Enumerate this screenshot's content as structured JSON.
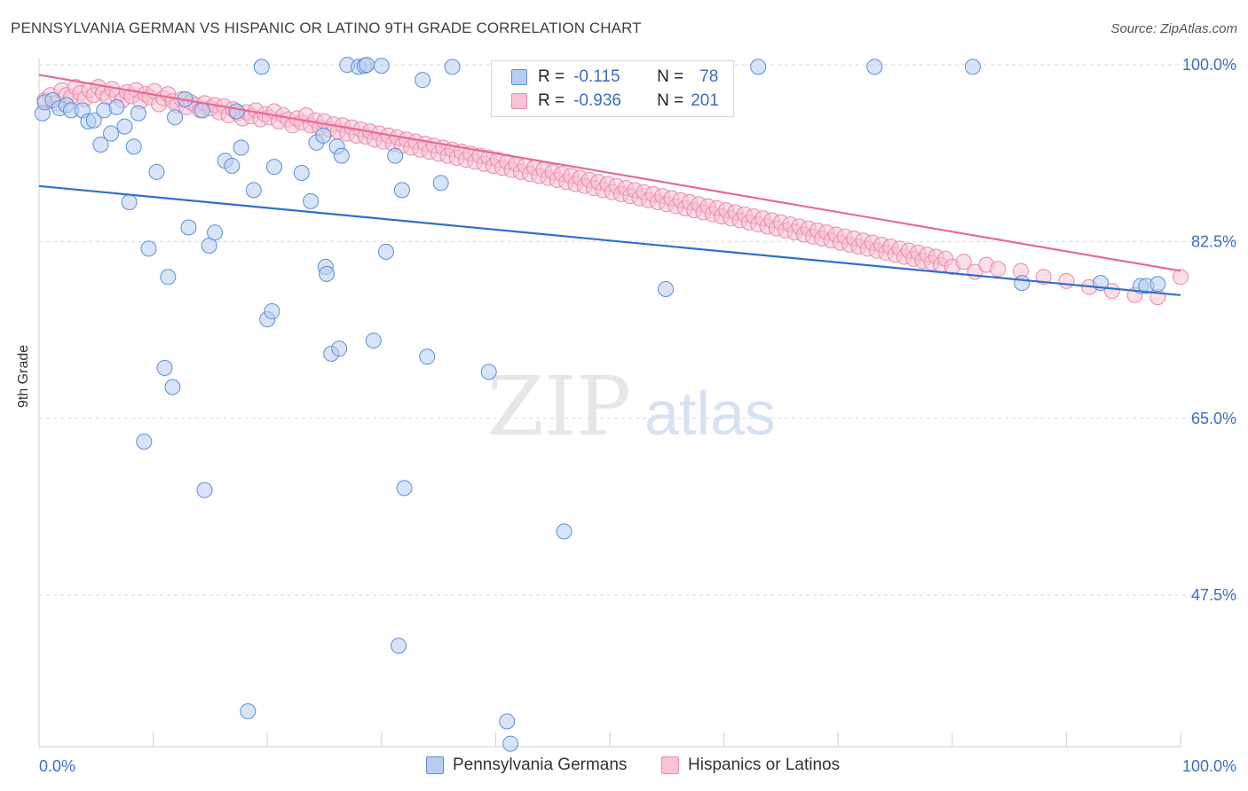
{
  "title": "PENNSYLVANIA GERMAN VS HISPANIC OR LATINO 9TH GRADE CORRELATION CHART",
  "source": "Source: ZipAtlas.com",
  "watermark": {
    "zip": "ZIP",
    "atlas": "atlas"
  },
  "legend_stats": {
    "r_label": "R =",
    "n_label": "N =",
    "rows": [
      {
        "r": "-0.115",
        "n": "78"
      },
      {
        "r": "-0.936",
        "n": "201"
      }
    ]
  },
  "colors": {
    "blue_fill": "#b7cdf0",
    "blue_stroke": "#5b8fd6",
    "blue_line": "#2f6fcb",
    "pink_fill": "#f8c3d4",
    "pink_stroke": "#e88aa8",
    "pink_line": "#e86a93",
    "tick_text": "#3a6ec4",
    "grid": "#d8d8d8"
  },
  "chart_data": {
    "type": "scatter",
    "title": "PENNSYLVANIA GERMAN VS HISPANIC OR LATINO 9TH GRADE CORRELATION CHART",
    "xlabel": "",
    "ylabel": "9th Grade",
    "xlim": [
      0,
      100
    ],
    "ylim": [
      32.5,
      101.5
    ],
    "x_tick_labels": [
      "0.0%",
      "100.0%"
    ],
    "y_ticks": [
      100,
      82.5,
      65,
      47.5
    ],
    "y_tick_labels": [
      "100.0%",
      "82.5%",
      "65.0%",
      "47.5%"
    ],
    "grid": "horizontal dashed",
    "legend_placement": "bottom-center",
    "series": [
      {
        "name": "Pennsylvania Germans",
        "r": -0.115,
        "n": 78,
        "trend": [
          [
            0,
            88.0
          ],
          [
            100,
            77.2
          ]
        ],
        "points": [
          [
            0.3,
            95.2
          ],
          [
            0.5,
            96.3
          ],
          [
            1.2,
            96.5
          ],
          [
            1.8,
            95.7
          ],
          [
            2.4,
            96.0
          ],
          [
            2.8,
            95.5
          ],
          [
            3.8,
            95.5
          ],
          [
            4.3,
            94.4
          ],
          [
            4.8,
            94.5
          ],
          [
            5.4,
            92.1
          ],
          [
            5.7,
            95.5
          ],
          [
            6.3,
            93.2
          ],
          [
            6.8,
            95.8
          ],
          [
            7.5,
            93.9
          ],
          [
            7.9,
            86.4
          ],
          [
            8.3,
            91.9
          ],
          [
            8.7,
            95.2
          ],
          [
            9.6,
            81.8
          ],
          [
            10.3,
            89.4
          ],
          [
            11.3,
            79.0
          ],
          [
            11.7,
            68.1
          ],
          [
            11.9,
            94.8
          ],
          [
            11.0,
            70.0
          ],
          [
            9.2,
            62.7
          ],
          [
            12.8,
            96.6
          ],
          [
            13.1,
            83.9
          ],
          [
            14.3,
            95.5
          ],
          [
            14.5,
            57.9
          ],
          [
            14.9,
            82.1
          ],
          [
            15.4,
            83.4
          ],
          [
            16.3,
            90.5
          ],
          [
            16.9,
            90.0
          ],
          [
            17.3,
            95.4
          ],
          [
            17.7,
            91.8
          ],
          [
            18.3,
            36.0
          ],
          [
            18.8,
            87.6
          ],
          [
            19.5,
            99.8
          ],
          [
            20.0,
            74.8
          ],
          [
            20.4,
            75.6
          ],
          [
            20.6,
            89.9
          ],
          [
            23.0,
            89.3
          ],
          [
            23.8,
            86.5
          ],
          [
            24.3,
            92.3
          ],
          [
            24.9,
            93.0
          ],
          [
            25.1,
            80.0
          ],
          [
            25.2,
            79.3
          ],
          [
            25.6,
            71.4
          ],
          [
            26.1,
            91.9
          ],
          [
            26.5,
            91.0
          ],
          [
            26.3,
            71.9
          ],
          [
            27.0,
            100.0
          ],
          [
            28.0,
            99.8
          ],
          [
            28.5,
            99.9
          ],
          [
            28.7,
            100.0
          ],
          [
            29.3,
            72.7
          ],
          [
            30.0,
            99.9
          ],
          [
            30.4,
            81.5
          ],
          [
            31.2,
            91.0
          ],
          [
            31.5,
            42.5
          ],
          [
            31.8,
            87.6
          ],
          [
            32.0,
            58.1
          ],
          [
            33.6,
            98.5
          ],
          [
            34.0,
            71.1
          ],
          [
            35.2,
            88.3
          ],
          [
            36.2,
            99.8
          ],
          [
            39.4,
            69.6
          ],
          [
            41.0,
            35.0
          ],
          [
            41.3,
            32.8
          ],
          [
            46.0,
            53.8
          ],
          [
            54.9,
            77.8
          ],
          [
            63.0,
            99.8
          ],
          [
            73.2,
            99.8
          ],
          [
            81.8,
            99.8
          ],
          [
            86.1,
            78.4
          ],
          [
            93.0,
            78.4
          ],
          [
            96.5,
            78.1
          ],
          [
            97.0,
            78.1
          ],
          [
            98.0,
            78.3
          ]
        ]
      },
      {
        "name": "Hispanics or Latinos",
        "r": -0.936,
        "n": 201,
        "trend": [
          [
            0,
            99.0
          ],
          [
            100,
            79.6
          ]
        ],
        "points": [
          [
            0.5,
            96.5
          ],
          [
            1.0,
            97.0
          ],
          [
            1.5,
            96.2
          ],
          [
            2.0,
            97.5
          ],
          [
            2.4,
            97.0
          ],
          [
            2.8,
            96.8
          ],
          [
            3.2,
            97.8
          ],
          [
            3.6,
            97.2
          ],
          [
            4.0,
            96.6
          ],
          [
            4.4,
            97.5
          ],
          [
            4.8,
            97.0
          ],
          [
            5.2,
            97.8
          ],
          [
            5.6,
            97.2
          ],
          [
            6.0,
            96.8
          ],
          [
            6.4,
            97.6
          ],
          [
            6.8,
            97.0
          ],
          [
            7.3,
            96.5
          ],
          [
            7.7,
            97.3
          ],
          [
            8.1,
            96.9
          ],
          [
            8.5,
            97.5
          ],
          [
            8.9,
            96.4
          ],
          [
            9.3,
            97.1
          ],
          [
            9.7,
            96.8
          ],
          [
            10.1,
            97.4
          ],
          [
            10.5,
            96.1
          ],
          [
            10.9,
            96.7
          ],
          [
            11.3,
            97.1
          ],
          [
            11.7,
            96.4
          ],
          [
            12.1,
            96.0
          ],
          [
            12.5,
            96.6
          ],
          [
            12.9,
            95.8
          ],
          [
            13.3,
            96.3
          ],
          [
            13.7,
            96.0
          ],
          [
            14.1,
            95.5
          ],
          [
            14.5,
            96.2
          ],
          [
            15.0,
            95.7
          ],
          [
            15.4,
            96.0
          ],
          [
            15.8,
            95.3
          ],
          [
            16.2,
            95.9
          ],
          [
            16.6,
            95.0
          ],
          [
            17.0,
            95.6
          ],
          [
            17.4,
            95.2
          ],
          [
            17.8,
            94.7
          ],
          [
            18.2,
            95.3
          ],
          [
            18.6,
            94.9
          ],
          [
            19.0,
            95.5
          ],
          [
            19.4,
            94.6
          ],
          [
            19.8,
            95.1
          ],
          [
            20.2,
            94.8
          ],
          [
            20.6,
            95.4
          ],
          [
            21.0,
            94.4
          ],
          [
            21.4,
            95.0
          ],
          [
            21.8,
            94.6
          ],
          [
            22.2,
            94.0
          ],
          [
            22.6,
            94.7
          ],
          [
            23.0,
            94.3
          ],
          [
            23.4,
            95.0
          ],
          [
            23.8,
            94.0
          ],
          [
            24.2,
            94.5
          ],
          [
            24.6,
            93.8
          ],
          [
            25.0,
            94.4
          ],
          [
            25.4,
            93.6
          ],
          [
            25.8,
            94.1
          ],
          [
            26.2,
            93.4
          ],
          [
            26.6,
            94.0
          ],
          [
            27.0,
            93.2
          ],
          [
            27.4,
            93.8
          ],
          [
            27.8,
            93.0
          ],
          [
            28.2,
            93.6
          ],
          [
            28.6,
            92.9
          ],
          [
            29.0,
            93.4
          ],
          [
            29.4,
            92.6
          ],
          [
            29.8,
            93.2
          ],
          [
            30.2,
            92.4
          ],
          [
            30.6,
            93.0
          ],
          [
            31.0,
            92.2
          ],
          [
            31.4,
            92.8
          ],
          [
            31.8,
            92.0
          ],
          [
            32.2,
            92.6
          ],
          [
            32.6,
            91.8
          ],
          [
            33.0,
            92.4
          ],
          [
            33.4,
            91.6
          ],
          [
            33.8,
            92.2
          ],
          [
            34.2,
            91.4
          ],
          [
            34.6,
            92.0
          ],
          [
            35.0,
            91.2
          ],
          [
            35.4,
            91.8
          ],
          [
            35.8,
            91.0
          ],
          [
            36.2,
            91.6
          ],
          [
            36.6,
            90.8
          ],
          [
            37.0,
            91.4
          ],
          [
            37.4,
            90.6
          ],
          [
            37.8,
            91.2
          ],
          [
            38.2,
            90.4
          ],
          [
            38.6,
            91.0
          ],
          [
            39.0,
            90.2
          ],
          [
            39.4,
            90.8
          ],
          [
            39.8,
            90.0
          ],
          [
            40.2,
            90.6
          ],
          [
            40.6,
            89.8
          ],
          [
            41.0,
            90.4
          ],
          [
            41.4,
            89.6
          ],
          [
            41.8,
            90.2
          ],
          [
            42.2,
            89.4
          ],
          [
            42.6,
            90.0
          ],
          [
            43.0,
            89.2
          ],
          [
            43.4,
            89.8
          ],
          [
            43.8,
            89.0
          ],
          [
            44.2,
            89.6
          ],
          [
            44.6,
            88.8
          ],
          [
            45.0,
            89.4
          ],
          [
            45.4,
            88.6
          ],
          [
            45.8,
            89.2
          ],
          [
            46.2,
            88.4
          ],
          [
            46.6,
            89.0
          ],
          [
            47.0,
            88.2
          ],
          [
            47.4,
            88.8
          ],
          [
            47.8,
            88.0
          ],
          [
            48.2,
            88.6
          ],
          [
            48.6,
            87.8
          ],
          [
            49.0,
            88.4
          ],
          [
            49.4,
            87.6
          ],
          [
            49.8,
            88.2
          ],
          [
            50.2,
            87.4
          ],
          [
            50.6,
            88.0
          ],
          [
            51.0,
            87.2
          ],
          [
            51.4,
            87.8
          ],
          [
            51.8,
            87.0
          ],
          [
            52.2,
            87.6
          ],
          [
            52.6,
            86.8
          ],
          [
            53.0,
            87.4
          ],
          [
            53.4,
            86.6
          ],
          [
            53.8,
            87.2
          ],
          [
            54.2,
            86.4
          ],
          [
            54.6,
            87.0
          ],
          [
            55.0,
            86.2
          ],
          [
            55.4,
            86.8
          ],
          [
            55.8,
            86.0
          ],
          [
            56.2,
            86.6
          ],
          [
            56.6,
            85.8
          ],
          [
            57.0,
            86.4
          ],
          [
            57.4,
            85.6
          ],
          [
            57.8,
            86.2
          ],
          [
            58.2,
            85.4
          ],
          [
            58.6,
            86.0
          ],
          [
            59.0,
            85.2
          ],
          [
            59.4,
            85.8
          ],
          [
            59.8,
            85.0
          ],
          [
            60.2,
            85.6
          ],
          [
            60.6,
            84.8
          ],
          [
            61.0,
            85.4
          ],
          [
            61.4,
            84.6
          ],
          [
            61.8,
            85.2
          ],
          [
            62.2,
            84.4
          ],
          [
            62.6,
            85.0
          ],
          [
            63.0,
            84.2
          ],
          [
            63.4,
            84.8
          ],
          [
            63.8,
            84.0
          ],
          [
            64.2,
            84.6
          ],
          [
            64.6,
            83.8
          ],
          [
            65.0,
            84.4
          ],
          [
            65.4,
            83.6
          ],
          [
            65.8,
            84.2
          ],
          [
            66.2,
            83.4
          ],
          [
            66.6,
            84.0
          ],
          [
            67.0,
            83.2
          ],
          [
            67.4,
            83.8
          ],
          [
            67.8,
            83.0
          ],
          [
            68.2,
            83.6
          ],
          [
            68.6,
            82.8
          ],
          [
            69.0,
            83.4
          ],
          [
            69.4,
            82.6
          ],
          [
            69.8,
            83.2
          ],
          [
            70.2,
            82.4
          ],
          [
            70.6,
            83.0
          ],
          [
            71.0,
            82.2
          ],
          [
            71.4,
            82.8
          ],
          [
            71.8,
            82.0
          ],
          [
            72.2,
            82.6
          ],
          [
            72.6,
            81.8
          ],
          [
            73.0,
            82.4
          ],
          [
            73.4,
            81.6
          ],
          [
            73.8,
            82.2
          ],
          [
            74.2,
            81.4
          ],
          [
            74.6,
            82.0
          ],
          [
            75.0,
            81.2
          ],
          [
            75.4,
            81.8
          ],
          [
            75.8,
            81.0
          ],
          [
            76.2,
            81.6
          ],
          [
            76.6,
            80.8
          ],
          [
            77.0,
            81.4
          ],
          [
            77.4,
            80.6
          ],
          [
            77.8,
            81.2
          ],
          [
            78.2,
            80.4
          ],
          [
            78.6,
            81.0
          ],
          [
            79.0,
            80.2
          ],
          [
            79.4,
            80.8
          ],
          [
            80.0,
            80.0
          ],
          [
            81.0,
            80.5
          ],
          [
            82.0,
            79.5
          ],
          [
            83.0,
            80.2
          ],
          [
            84.0,
            79.8
          ],
          [
            86.0,
            79.6
          ],
          [
            88.0,
            79.0
          ],
          [
            90.0,
            78.6
          ],
          [
            92.0,
            78.0
          ],
          [
            94.0,
            77.6
          ],
          [
            96.0,
            77.2
          ],
          [
            98.0,
            77.0
          ],
          [
            100.0,
            79.0
          ]
        ]
      }
    ]
  },
  "bottom_legend": [
    "Pennsylvania Germans",
    "Hispanics or Latinos"
  ]
}
